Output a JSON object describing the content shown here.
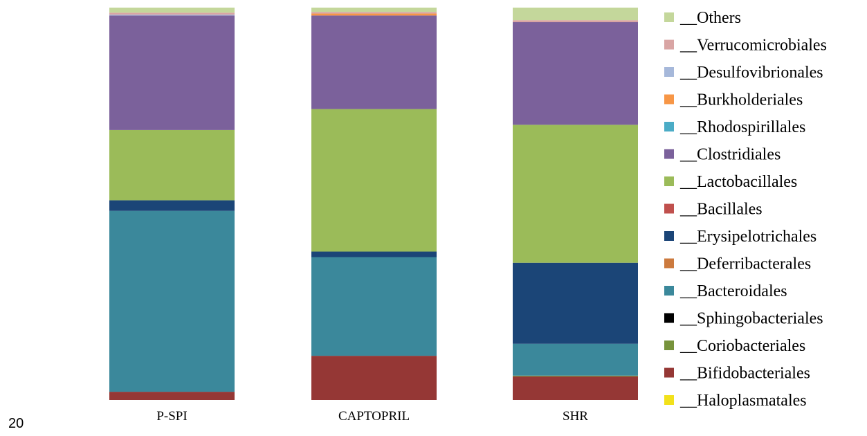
{
  "page_number": "20",
  "chart_data": {
    "type": "bar",
    "stacked": true,
    "normalized": true,
    "categories": [
      "P-SPI",
      "CAPTOPRIL",
      "SHR"
    ],
    "legend_position": "right",
    "series": [
      {
        "name": "__Haloplasmatales",
        "color": "#f2e11b",
        "values": [
          0.0,
          0.0,
          0.0
        ]
      },
      {
        "name": "__Bifidobacteriales",
        "color": "#953735",
        "values": [
          2.1,
          11.2,
          6.0
        ]
      },
      {
        "name": "__Coriobacteriales",
        "color": "#77933c",
        "values": [
          0.0,
          0.0,
          0.2
        ]
      },
      {
        "name": "__Sphingobacteriales",
        "color": "#000000",
        "values": [
          0.0,
          0.0,
          0.0
        ]
      },
      {
        "name": "__Bacteroidales",
        "color": "#3b889b",
        "values": [
          46.1,
          25.0,
          8.1
        ]
      },
      {
        "name": "__Deferribacterales",
        "color": "#cc7a3e",
        "values": [
          0.0,
          0.0,
          0.0
        ]
      },
      {
        "name": "__Erysipelotrichales",
        "color": "#1b4577",
        "values": [
          2.7,
          1.4,
          20.6
        ]
      },
      {
        "name": "__Bacillales",
        "color": "#c0504d",
        "values": [
          0.0,
          0.0,
          0.0
        ]
      },
      {
        "name": "__Lactobacillales",
        "color": "#9bbb59",
        "values": [
          17.9,
          36.1,
          35.1
        ]
      },
      {
        "name": "__Clostridiales",
        "color": "#7b619b",
        "values": [
          29.2,
          23.7,
          26.1
        ]
      },
      {
        "name": "__Rhodospirillales",
        "color": "#4bacc6",
        "values": [
          0.0,
          0.0,
          0.0
        ]
      },
      {
        "name": "__Burkholderiales",
        "color": "#f79646",
        "values": [
          0.0,
          0.5,
          0.0
        ]
      },
      {
        "name": "__Desulfovibrionales",
        "color": "#a6b8da",
        "values": [
          0.2,
          0.0,
          0.0
        ]
      },
      {
        "name": "__Verrucomicrobiales",
        "color": "#d9a5a4",
        "values": [
          0.5,
          0.4,
          0.5
        ]
      },
      {
        "name": "__Others",
        "color": "#c4d79b",
        "values": [
          1.3,
          1.1,
          3.2
        ]
      }
    ]
  }
}
